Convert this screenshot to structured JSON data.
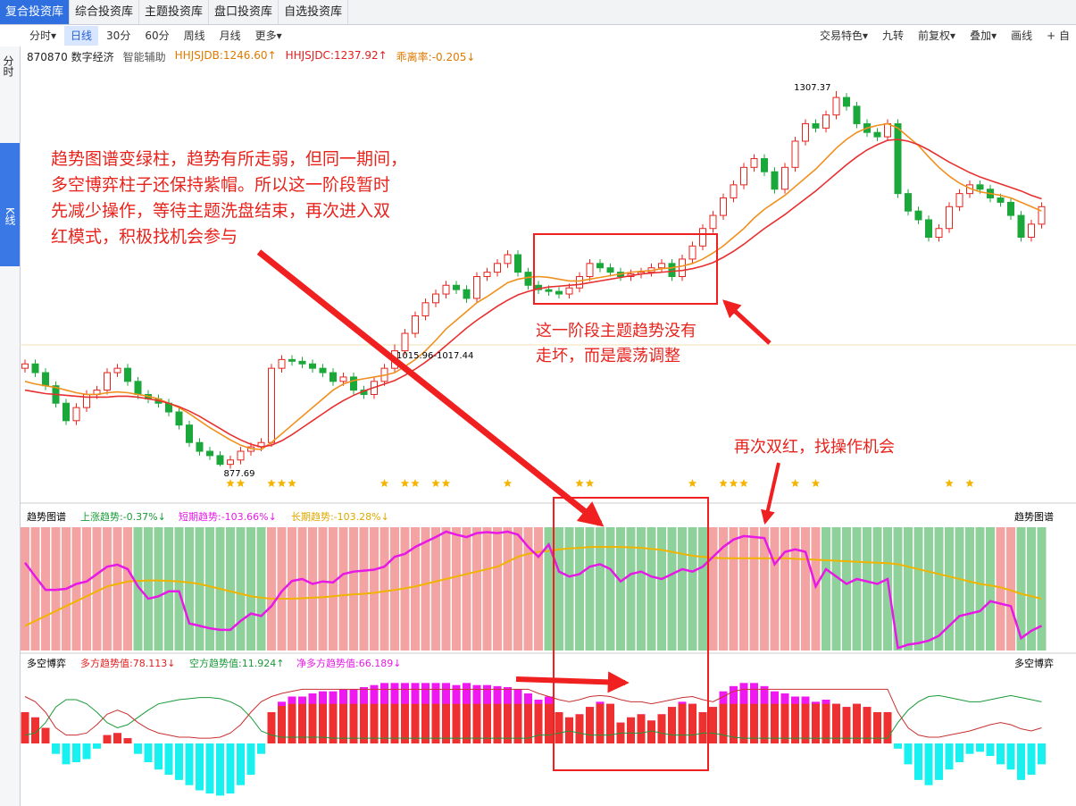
{
  "ui": {
    "tabs": [
      "复合投资库",
      "综合投资库",
      "主题投资库",
      "盘口投资库",
      "自选投资库"
    ],
    "toolbar_left": [
      "分时▾",
      "日线",
      "30分",
      "60分",
      "周线",
      "月线",
      "更多▾"
    ],
    "toolbar_right": [
      "交易特色▾",
      "九转",
      "前复权▾",
      "叠加▾",
      "画线",
      "+ 自"
    ],
    "side": [
      "分时",
      "K线"
    ],
    "stock": "870870 数字经济",
    "assist": "智能辅助",
    "info": [
      "HHJSJDB:1246.60↑",
      "HHJSJDC:1237.92↑",
      "乖离率:-0.205↓"
    ],
    "trend_legend": [
      "趋势图谱",
      "上涨趋势:-0.37%↓",
      "短期趋势:-103.66%↓",
      "长期趋势:-103.28%↓",
      "趋势图谱"
    ],
    "game_legend": [
      "多空博弈",
      "多方趋势值:78.113↓",
      "空方趋势值:11.924↑",
      "净多方趋势值:66.189↓",
      "多空博弈"
    ]
  },
  "annotations": {
    "main": [
      "趋势图谱变绿柱，趋势有所走弱，但同一期间，",
      "多空博弈柱子还保持紫帽。所以这一阶段暂时",
      "先减少操作，等待主题洗盘结束，再次进入双",
      "红模式，积极找机会参与"
    ],
    "box": [
      "这一阶段主题趋势没有",
      "走坏，而是震荡调整"
    ],
    "again": "再次双红，找操作机会"
  },
  "chart_data": {
    "type": "candlestick",
    "ylim": [
      850,
      1340
    ],
    "range_label": "1015.96-1017.44",
    "up_color": "#e8231c",
    "down_color": "#1aa83a",
    "ma_colors": [
      "#f0901e",
      "#e83030"
    ],
    "ohlc": [
      [
        990,
        1000,
        985,
        995
      ],
      [
        995,
        1000,
        980,
        985
      ],
      [
        985,
        990,
        965,
        970
      ],
      [
        970,
        975,
        945,
        950
      ],
      [
        950,
        955,
        925,
        930
      ],
      [
        930,
        950,
        925,
        945
      ],
      [
        945,
        965,
        940,
        960
      ],
      [
        960,
        970,
        955,
        965
      ],
      [
        965,
        990,
        960,
        985
      ],
      [
        985,
        995,
        980,
        990
      ],
      [
        990,
        995,
        970,
        975
      ],
      [
        975,
        980,
        955,
        960
      ],
      [
        960,
        965,
        950,
        955
      ],
      [
        955,
        960,
        945,
        950
      ],
      [
        950,
        955,
        935,
        940
      ],
      [
        940,
        945,
        920,
        925
      ],
      [
        925,
        930,
        900,
        905
      ],
      [
        905,
        910,
        890,
        895
      ],
      [
        895,
        900,
        885,
        890
      ],
      [
        890,
        895,
        877.69,
        880
      ],
      [
        880,
        890,
        875,
        885
      ],
      [
        885,
        900,
        880,
        895
      ],
      [
        895,
        905,
        890,
        900
      ],
      [
        900,
        910,
        895,
        905
      ],
      [
        905,
        995,
        900,
        990
      ],
      [
        990,
        1005,
        985,
        1000
      ],
      [
        1000,
        1005,
        993,
        998
      ],
      [
        998,
        1003,
        990,
        995
      ],
      [
        995,
        1000,
        985,
        990
      ],
      [
        990,
        995,
        980,
        985
      ],
      [
        985,
        990,
        970,
        975
      ],
      [
        975,
        985,
        970,
        980
      ],
      [
        980,
        985,
        960,
        965
      ],
      [
        965,
        970,
        955,
        960
      ],
      [
        960,
        980,
        955,
        975
      ],
      [
        975,
        995,
        970,
        990
      ],
      [
        990,
        1017.44,
        985,
        1010
      ],
      [
        1010,
        1035,
        1005,
        1030
      ],
      [
        1030,
        1055,
        1025,
        1050
      ],
      [
        1050,
        1070,
        1045,
        1065
      ],
      [
        1065,
        1080,
        1060,
        1075
      ],
      [
        1075,
        1090,
        1070,
        1085
      ],
      [
        1085,
        1090,
        1075,
        1080
      ],
      [
        1080,
        1085,
        1065,
        1070
      ],
      [
        1070,
        1100,
        1065,
        1095
      ],
      [
        1095,
        1105,
        1090,
        1100
      ],
      [
        1100,
        1115,
        1095,
        1110
      ],
      [
        1110,
        1125,
        1105,
        1120
      ],
      [
        1120,
        1125,
        1095,
        1100
      ],
      [
        1100,
        1105,
        1080,
        1085
      ],
      [
        1085,
        1090,
        1075,
        1080
      ],
      [
        1080,
        1085,
        1073,
        1078
      ],
      [
        1078,
        1083,
        1070,
        1075
      ],
      [
        1075,
        1087,
        1070,
        1082
      ],
      [
        1082,
        1100,
        1077,
        1095
      ],
      [
        1095,
        1115,
        1090,
        1110
      ],
      [
        1110,
        1115,
        1100,
        1105
      ],
      [
        1105,
        1110,
        1095,
        1100
      ],
      [
        1100,
        1105,
        1090,
        1095
      ],
      [
        1095,
        1103,
        1090,
        1098
      ],
      [
        1098,
        1105,
        1093,
        1100
      ],
      [
        1100,
        1110,
        1095,
        1105
      ],
      [
        1105,
        1115,
        1100,
        1110
      ],
      [
        1110,
        1115,
        1090,
        1095
      ],
      [
        1095,
        1120,
        1090,
        1115
      ],
      [
        1115,
        1135,
        1110,
        1130
      ],
      [
        1130,
        1155,
        1125,
        1150
      ],
      [
        1150,
        1170,
        1145,
        1165
      ],
      [
        1165,
        1190,
        1160,
        1185
      ],
      [
        1185,
        1205,
        1180,
        1200
      ],
      [
        1200,
        1225,
        1195,
        1220
      ],
      [
        1220,
        1235,
        1215,
        1230
      ],
      [
        1230,
        1235,
        1210,
        1215
      ],
      [
        1215,
        1220,
        1190,
        1195
      ],
      [
        1195,
        1225,
        1190,
        1220
      ],
      [
        1220,
        1255,
        1215,
        1250
      ],
      [
        1250,
        1275,
        1245,
        1270
      ],
      [
        1270,
        1275,
        1260,
        1265
      ],
      [
        1265,
        1285,
        1260,
        1280
      ],
      [
        1280,
        1307.37,
        1275,
        1300
      ],
      [
        1300,
        1305,
        1285,
        1290
      ],
      [
        1290,
        1295,
        1265,
        1270
      ],
      [
        1270,
        1275,
        1255,
        1260
      ],
      [
        1260,
        1265,
        1250,
        1255
      ],
      [
        1255,
        1275,
        1250,
        1270
      ],
      [
        1270,
        1275,
        1185,
        1190
      ],
      [
        1190,
        1195,
        1165,
        1170
      ],
      [
        1170,
        1175,
        1155,
        1160
      ],
      [
        1160,
        1165,
        1135,
        1140
      ],
      [
        1140,
        1155,
        1135,
        1150
      ],
      [
        1150,
        1180,
        1145,
        1175
      ],
      [
        1175,
        1195,
        1170,
        1190
      ],
      [
        1190,
        1205,
        1185,
        1200
      ],
      [
        1200,
        1205,
        1190,
        1195
      ],
      [
        1195,
        1200,
        1180,
        1185
      ],
      [
        1185,
        1190,
        1175,
        1180
      ],
      [
        1180,
        1185,
        1160,
        1165
      ],
      [
        1165,
        1170,
        1135,
        1140
      ],
      [
        1140,
        1160,
        1135,
        1155
      ],
      [
        1155,
        1180,
        1150,
        1175
      ]
    ],
    "ma1": [
      975,
      972,
      970,
      968,
      965,
      962,
      960,
      960,
      962,
      963,
      962,
      960,
      958,
      955,
      950,
      945,
      938,
      930,
      922,
      915,
      908,
      902,
      898,
      897,
      905,
      915,
      925,
      935,
      945,
      955,
      965,
      972,
      976,
      978,
      980,
      982,
      985,
      992,
      1000,
      1010,
      1022,
      1035,
      1045,
      1055,
      1065,
      1072,
      1080,
      1088,
      1092,
      1094,
      1095,
      1094,
      1092,
      1090,
      1090,
      1092,
      1094,
      1096,
      1098,
      1100,
      1101,
      1102,
      1104,
      1105,
      1107,
      1110,
      1115,
      1122,
      1130,
      1140,
      1150,
      1162,
      1172,
      1180,
      1188,
      1198,
      1208,
      1218,
      1230,
      1242,
      1252,
      1260,
      1265,
      1268,
      1270,
      1265,
      1255,
      1245,
      1232,
      1220,
      1210,
      1202,
      1196,
      1192,
      1190,
      1188,
      1185,
      1180,
      1175,
      1170
    ],
    "ma2": [
      965,
      963,
      961,
      960,
      959,
      958,
      957,
      957,
      957,
      958,
      958,
      957,
      955,
      953,
      950,
      946,
      941,
      935,
      928,
      921,
      914,
      908,
      903,
      900,
      902,
      907,
      914,
      922,
      930,
      938,
      946,
      953,
      959,
      964,
      968,
      972,
      976,
      982,
      989,
      997,
      1006,
      1016,
      1026,
      1036,
      1045,
      1053,
      1061,
      1068,
      1074,
      1078,
      1081,
      1083,
      1084,
      1085,
      1086,
      1088,
      1090,
      1092,
      1094,
      1096,
      1098,
      1099,
      1100,
      1101,
      1102,
      1104,
      1107,
      1111,
      1117,
      1124,
      1132,
      1141,
      1150,
      1158,
      1166,
      1175,
      1184,
      1193,
      1203,
      1213,
      1223,
      1232,
      1240,
      1246,
      1251,
      1252,
      1250,
      1246,
      1240,
      1233,
      1226,
      1220,
      1214,
      1209,
      1205,
      1201,
      1197,
      1193,
      1188,
      1184
    ],
    "signals": [
      20,
      21,
      24,
      25,
      26,
      35,
      37,
      38,
      40,
      41,
      47,
      54,
      55,
      65,
      68,
      69,
      70,
      75,
      77,
      90,
      92
    ],
    "signal_color": "#f5b400",
    "trend_panel": {
      "ylim": [
        -150,
        100
      ],
      "up_color": "#f4a3a3",
      "down_color": "#8fd19a",
      "short_color": "#e619e6",
      "long_color": "#f0b400",
      "trend": [
        1,
        1,
        1,
        1,
        1,
        1,
        1,
        1,
        1,
        1,
        1,
        0,
        0,
        0,
        0,
        0,
        0,
        0,
        0,
        0,
        0,
        0,
        0,
        0,
        1,
        1,
        1,
        1,
        1,
        1,
        1,
        1,
        1,
        1,
        1,
        1,
        1,
        1,
        1,
        1,
        1,
        1,
        1,
        1,
        1,
        1,
        1,
        1,
        1,
        1,
        1,
        0,
        0,
        0,
        0,
        0,
        0,
        0,
        0,
        0,
        0,
        0,
        0,
        0,
        0,
        0,
        0,
        1,
        1,
        1,
        1,
        1,
        1,
        1,
        1,
        1,
        1,
        1,
        0,
        0,
        0,
        0,
        0,
        0,
        0,
        0,
        0,
        0,
        0,
        0,
        0,
        0,
        0,
        0,
        0,
        1,
        1,
        0,
        0,
        0
      ],
      "short": [
        28,
        0,
        -27,
        -27,
        -25,
        -15,
        -10,
        5,
        20,
        24,
        15,
        -20,
        -45,
        -40,
        -30,
        -30,
        -95,
        -100,
        -105,
        -108,
        -108,
        -90,
        -75,
        -80,
        -60,
        -30,
        -9,
        -5,
        -15,
        -10,
        -12,
        5,
        10,
        12,
        14,
        20,
        40,
        46,
        60,
        70,
        80,
        91,
        85,
        80,
        88,
        90,
        88,
        91,
        85,
        60,
        40,
        65,
        10,
        0,
        5,
        20,
        25,
        15,
        -10,
        5,
        10,
        0,
        -5,
        5,
        15,
        10,
        20,
        40,
        60,
        75,
        82,
        80,
        78,
        25,
        50,
        55,
        50,
        -20,
        15,
        0,
        -15,
        -5,
        -10,
        -15,
        -5,
        -145,
        -138,
        -135,
        -130,
        -120,
        -100,
        -80,
        -75,
        -70,
        -50,
        -55,
        -60,
        -125,
        -110,
        -100
      ],
      "long": [
        -100,
        -90,
        -80,
        -70,
        -60,
        -50,
        -40,
        -30,
        -20,
        -15,
        -10,
        -9,
        -8,
        -8,
        -9,
        -10,
        -12,
        -15,
        -20,
        -25,
        -30,
        -35,
        -40,
        -43,
        -45,
        -45,
        -45,
        -44,
        -43,
        -42,
        -40,
        -38,
        -36,
        -35,
        -33,
        -30,
        -27,
        -24,
        -20,
        -15,
        -10,
        -5,
        0,
        5,
        10,
        15,
        20,
        30,
        40,
        46,
        50,
        52,
        55,
        57,
        58,
        60,
        60,
        60,
        60,
        59,
        58,
        56,
        54,
        50,
        46,
        42,
        40,
        38,
        37,
        37,
        37,
        37,
        37,
        37,
        37,
        36,
        35,
        34,
        33,
        32,
        31,
        30,
        29,
        28,
        27,
        25,
        20,
        15,
        10,
        5,
        0,
        -5,
        -10,
        -15,
        -18,
        -22,
        -28,
        -35,
        -40,
        -45
      ]
    },
    "game_panel": {
      "ylim": [
        -60,
        60
      ],
      "net_up_color": "#f018f0",
      "net_down_color": "#19f0f0",
      "bull_color": "#ef3030",
      "short_line_color": "#1a9a3a",
      "long_line_color": "#c83030",
      "net": [
        30,
        25,
        15,
        -10,
        -20,
        -18,
        -15,
        -5,
        8,
        10,
        5,
        -10,
        -18,
        -25,
        -30,
        -35,
        -40,
        -45,
        -48,
        -50,
        -48,
        -40,
        -30,
        -10,
        30,
        40,
        45,
        45,
        48,
        50,
        50,
        52,
        52,
        54,
        56,
        58,
        58,
        58,
        58,
        58,
        58,
        58,
        56,
        58,
        56,
        56,
        55,
        54,
        52,
        48,
        42,
        45,
        30,
        25,
        28,
        35,
        40,
        38,
        20,
        25,
        28,
        22,
        28,
        35,
        40,
        38,
        30,
        35,
        50,
        55,
        58,
        58,
        55,
        50,
        48,
        45,
        45,
        40,
        42,
        38,
        35,
        38,
        35,
        30,
        30,
        -5,
        -20,
        -35,
        -40,
        -35,
        -25,
        -18,
        -10,
        -8,
        -12,
        -20,
        -25,
        -35,
        -30,
        -20
      ],
      "bull": [
        30,
        25,
        15,
        0,
        0,
        0,
        0,
        0,
        8,
        10,
        5,
        0,
        0,
        0,
        0,
        0,
        0,
        0,
        0,
        0,
        0,
        0,
        0,
        0,
        30,
        36,
        38,
        38,
        38,
        38,
        38,
        38,
        38,
        38,
        38,
        38,
        38,
        38,
        38,
        38,
        38,
        38,
        38,
        38,
        38,
        38,
        38,
        38,
        38,
        38,
        38,
        38,
        30,
        25,
        28,
        35,
        38,
        38,
        20,
        25,
        28,
        22,
        28,
        35,
        38,
        38,
        30,
        35,
        38,
        38,
        38,
        38,
        38,
        38,
        38,
        38,
        38,
        38,
        38,
        38,
        35,
        38,
        35,
        30,
        30,
        0,
        0,
        0,
        0,
        0,
        0,
        0,
        0,
        0,
        0,
        0,
        0,
        0,
        0,
        0
      ],
      "short_line": [
        8,
        10,
        20,
        35,
        42,
        42,
        38,
        30,
        20,
        15,
        18,
        25,
        32,
        38,
        40,
        42,
        43,
        44,
        44,
        43,
        40,
        35,
        25,
        12,
        8,
        6,
        6,
        6,
        6,
        6,
        5,
        5,
        5,
        5,
        5,
        5,
        5,
        5,
        5,
        5,
        5,
        5,
        5,
        5,
        5,
        5,
        5,
        5,
        5,
        5,
        8,
        8,
        10,
        12,
        10,
        8,
        8,
        8,
        10,
        10,
        10,
        12,
        10,
        8,
        8,
        8,
        10,
        10,
        8,
        6,
        5,
        5,
        5,
        5,
        5,
        5,
        5,
        5,
        5,
        5,
        5,
        5,
        5,
        5,
        5,
        20,
        32,
        40,
        45,
        46,
        44,
        42,
        40,
        40,
        42,
        44,
        46,
        44,
        42,
        40
      ],
      "long_line": [
        45,
        40,
        30,
        15,
        8,
        8,
        10,
        18,
        28,
        32,
        28,
        20,
        14,
        10,
        8,
        6,
        6,
        5,
        5,
        6,
        10,
        18,
        30,
        40,
        45,
        48,
        50,
        52,
        52,
        52,
        52,
        52,
        52,
        52,
        52,
        52,
        52,
        52,
        52,
        52,
        52,
        52,
        52,
        52,
        52,
        52,
        52,
        52,
        52,
        52,
        48,
        45,
        42,
        40,
        42,
        45,
        46,
        45,
        42,
        40,
        40,
        38,
        40,
        42,
        44,
        45,
        42,
        40,
        45,
        50,
        52,
        52,
        52,
        52,
        52,
        52,
        52,
        52,
        52,
        52,
        52,
        52,
        52,
        52,
        52,
        30,
        15,
        8,
        6,
        6,
        8,
        10,
        12,
        15,
        18,
        20,
        18,
        14,
        12,
        15
      ]
    }
  }
}
